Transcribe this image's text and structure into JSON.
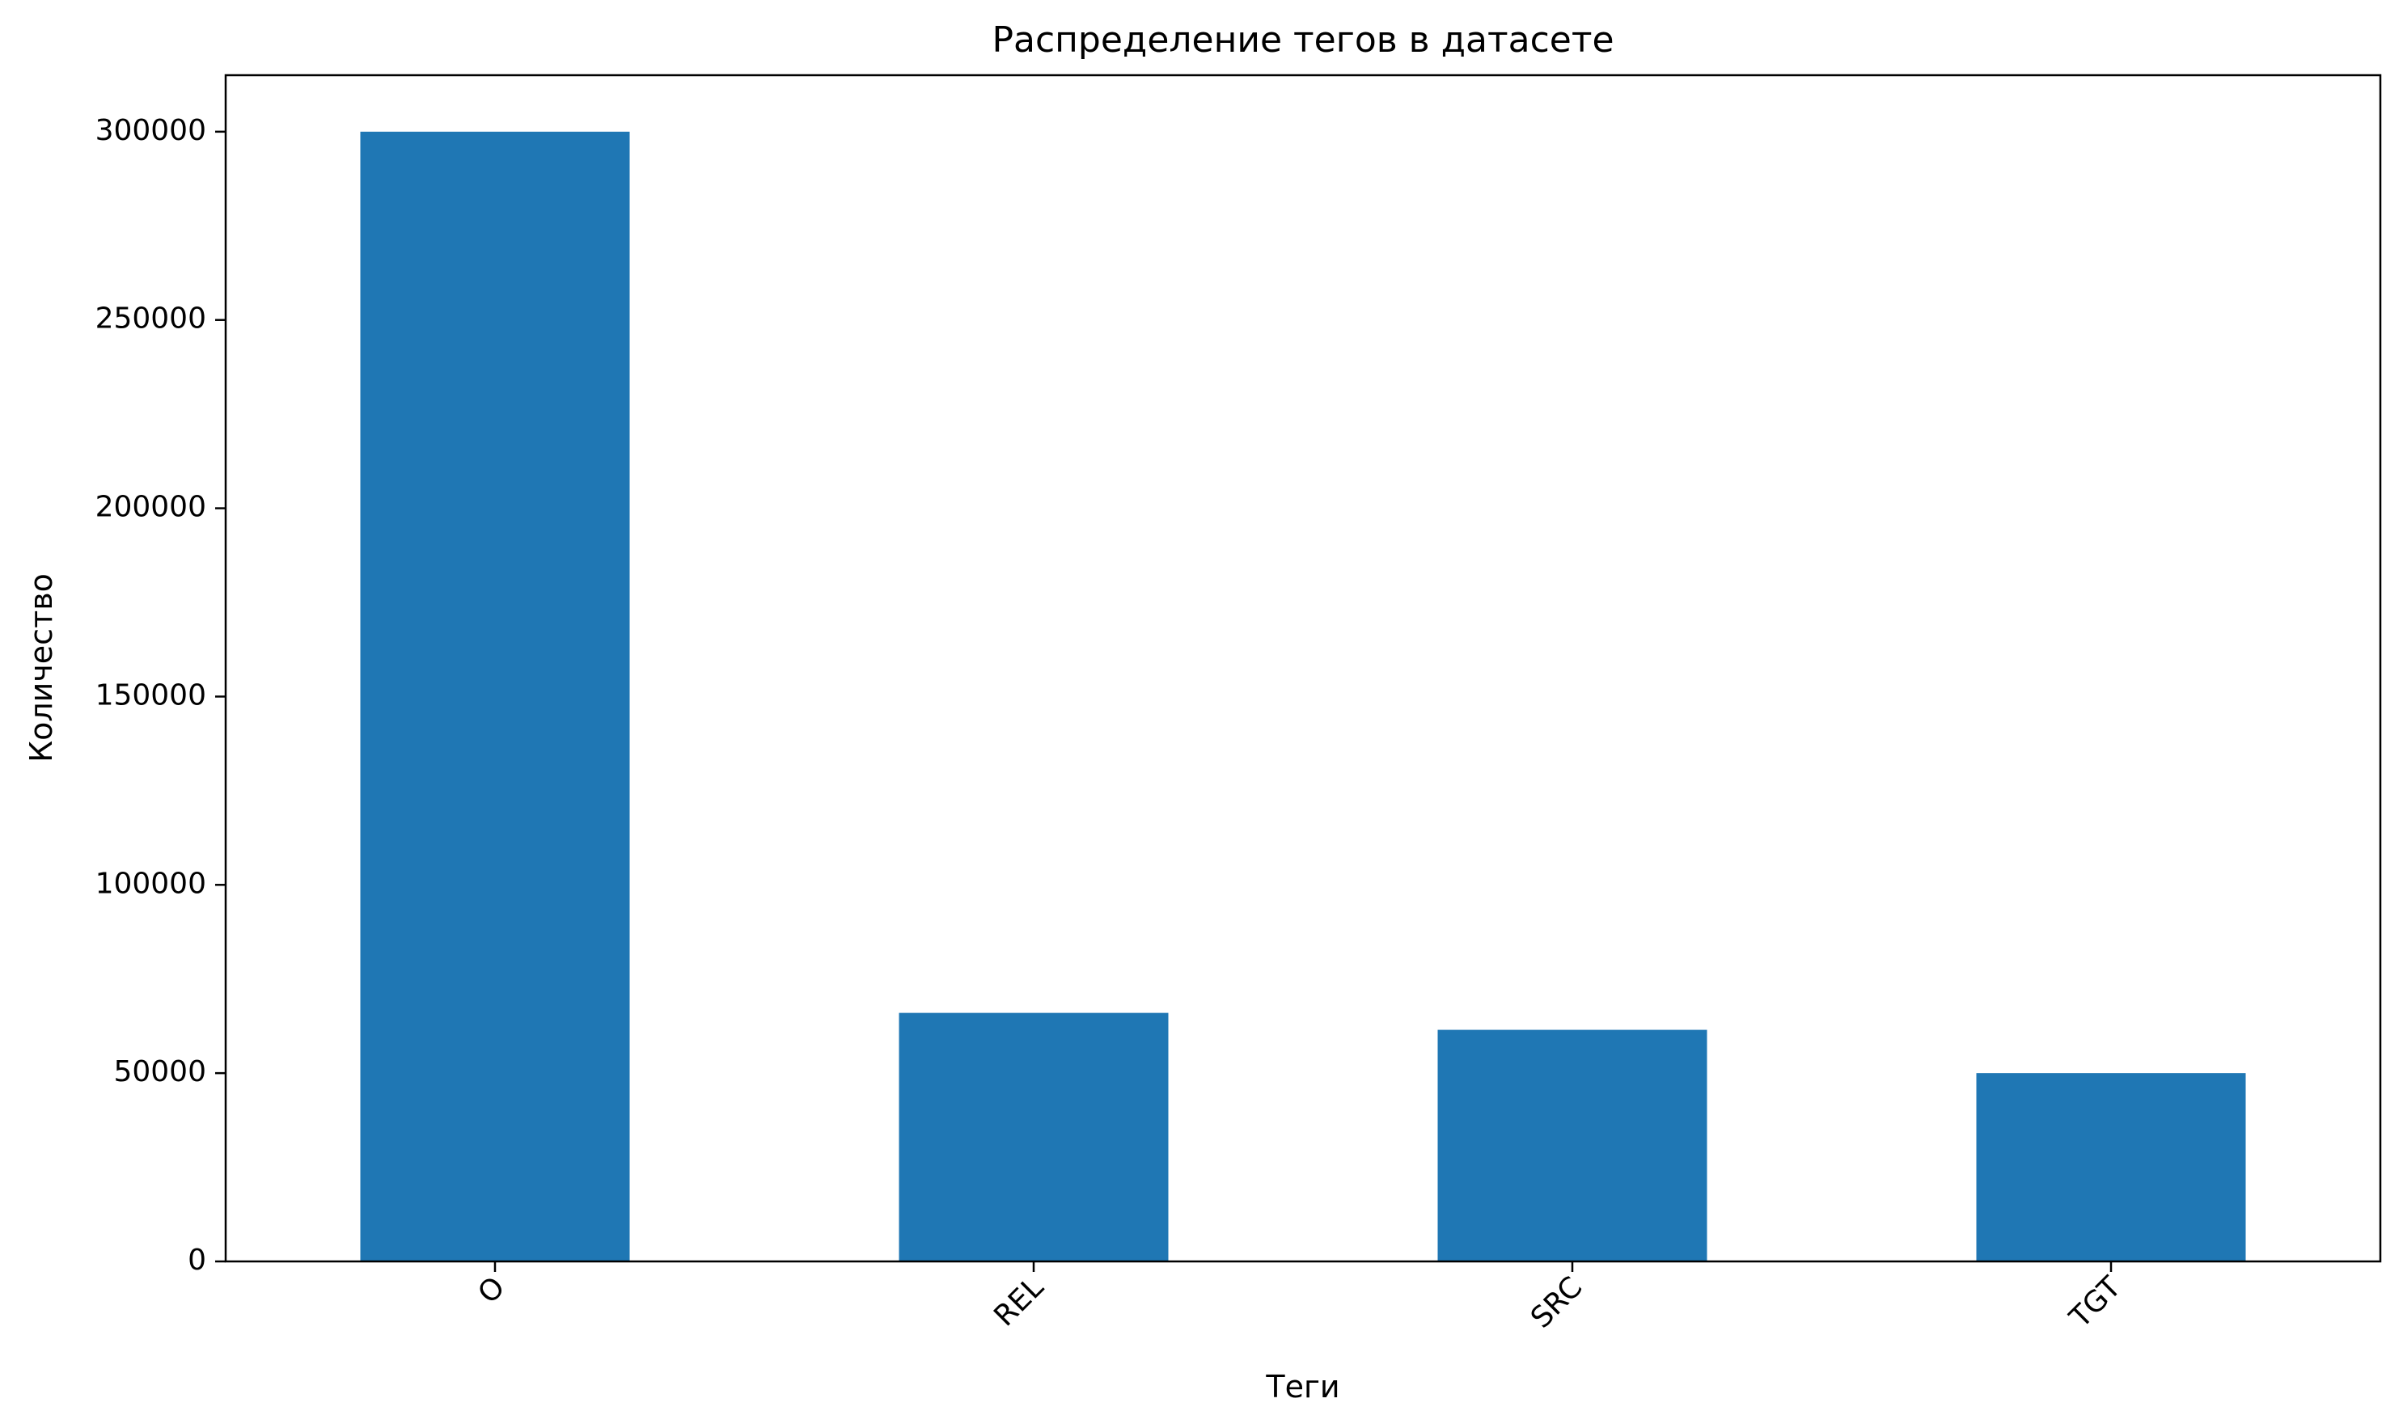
{
  "chart_data": {
    "type": "bar",
    "title": "Распределение тегов в датасете",
    "xlabel": "Теги",
    "ylabel": "Количество",
    "categories": [
      "O",
      "REL",
      "SRC",
      "TGT"
    ],
    "values": [
      300000,
      66000,
      61500,
      50000
    ],
    "ylim": [
      0,
      315000
    ],
    "yticks": [
      0,
      50000,
      100000,
      150000,
      200000,
      250000,
      300000
    ],
    "ytick_labels": [
      "0",
      "50000",
      "100000",
      "150000",
      "200000",
      "250000",
      "300000"
    ],
    "bar_color": "#1f77b4",
    "grid": false,
    "legend": false
  }
}
